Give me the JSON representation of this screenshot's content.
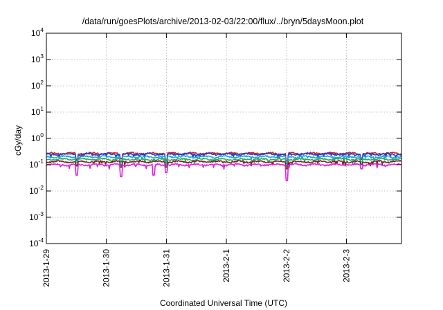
{
  "chart_data": {
    "type": "line",
    "title": "/data/run/goesPlots/archive/2013-02-03/22:00/flux/../bryn/5daysMoon.plot",
    "xlabel": "Coordinated Universal Time (UTC)",
    "ylabel": "cGy/day",
    "x_scale": "date",
    "y_scale": "log",
    "xlim": [
      "2013-01-29 00:00",
      "2013-02-03 22:00"
    ],
    "ylim": [
      0.0001,
      10000
    ],
    "grid": true,
    "legend": "none",
    "x_ticks": [
      "2013-1-29",
      "2013-1-30",
      "2013-1-31",
      "2013-2-1",
      "2013-2-2",
      "2013-2-3"
    ],
    "y_ticks": [
      {
        "base": "10",
        "exp": "-4"
      },
      {
        "base": "10",
        "exp": "-3"
      },
      {
        "base": "10",
        "exp": "-2"
      },
      {
        "base": "10",
        "exp": "-1"
      },
      {
        "base": "10",
        "exp": "0"
      },
      {
        "base": "10",
        "exp": "1"
      },
      {
        "base": "10",
        "exp": "2"
      },
      {
        "base": "10",
        "exp": "3"
      },
      {
        "base": "10",
        "exp": "4"
      }
    ],
    "series": [
      {
        "color": "#d62020",
        "level": 0.27,
        "dips": [
          [
            "2013-01-29 12:00",
            0.16
          ],
          [
            "2013-01-30 06:00",
            0.17
          ],
          [
            "2013-01-31 00:00",
            0.15
          ],
          [
            "2013-02-02 00:00",
            0.14
          ],
          [
            "2013-02-03 06:00",
            0.18
          ]
        ]
      },
      {
        "color": "#1a3fd6",
        "level": 0.25,
        "dips": [
          [
            "2013-01-29 12:00",
            0.14
          ],
          [
            "2013-01-30 06:00",
            0.13
          ],
          [
            "2013-01-31 00:00",
            0.12
          ],
          [
            "2013-02-02 00:00",
            0.11
          ],
          [
            "2013-02-03 06:00",
            0.16
          ]
        ]
      },
      {
        "color": "#20a0e0",
        "level": 0.2,
        "dips": [
          [
            "2013-01-29 12:00",
            0.12
          ],
          [
            "2013-01-30 06:00",
            0.1
          ],
          [
            "2013-01-31 00:00",
            0.1
          ],
          [
            "2013-02-02 00:00",
            0.09
          ],
          [
            "2013-02-03 06:00",
            0.13
          ]
        ]
      },
      {
        "color": "#20b060",
        "level": 0.16,
        "dips": [
          [
            "2013-01-29 12:00",
            0.1
          ],
          [
            "2013-01-30 06:00",
            0.09
          ],
          [
            "2013-01-31 00:00",
            0.09
          ],
          [
            "2013-02-02 00:00",
            0.08
          ],
          [
            "2013-02-03 06:00",
            0.11
          ]
        ]
      },
      {
        "color": "#802020",
        "level": 0.13,
        "dips": [
          [
            "2013-01-29 12:00",
            0.09
          ],
          [
            "2013-01-30 06:00",
            0.08
          ],
          [
            "2013-01-31 00:00",
            0.08
          ],
          [
            "2013-02-02 00:00",
            0.07
          ],
          [
            "2013-02-03 06:00",
            0.1
          ]
        ]
      },
      {
        "color": "#e020e0",
        "level": 0.1,
        "dips": [
          [
            "2013-01-29 12:00",
            0.04
          ],
          [
            "2013-01-30 06:00",
            0.035
          ],
          [
            "2013-01-30 19:00",
            0.04
          ],
          [
            "2013-01-31 00:00",
            0.05
          ],
          [
            "2013-02-02 00:00",
            0.025
          ],
          [
            "2013-02-03 06:00",
            0.07
          ]
        ]
      }
    ]
  }
}
